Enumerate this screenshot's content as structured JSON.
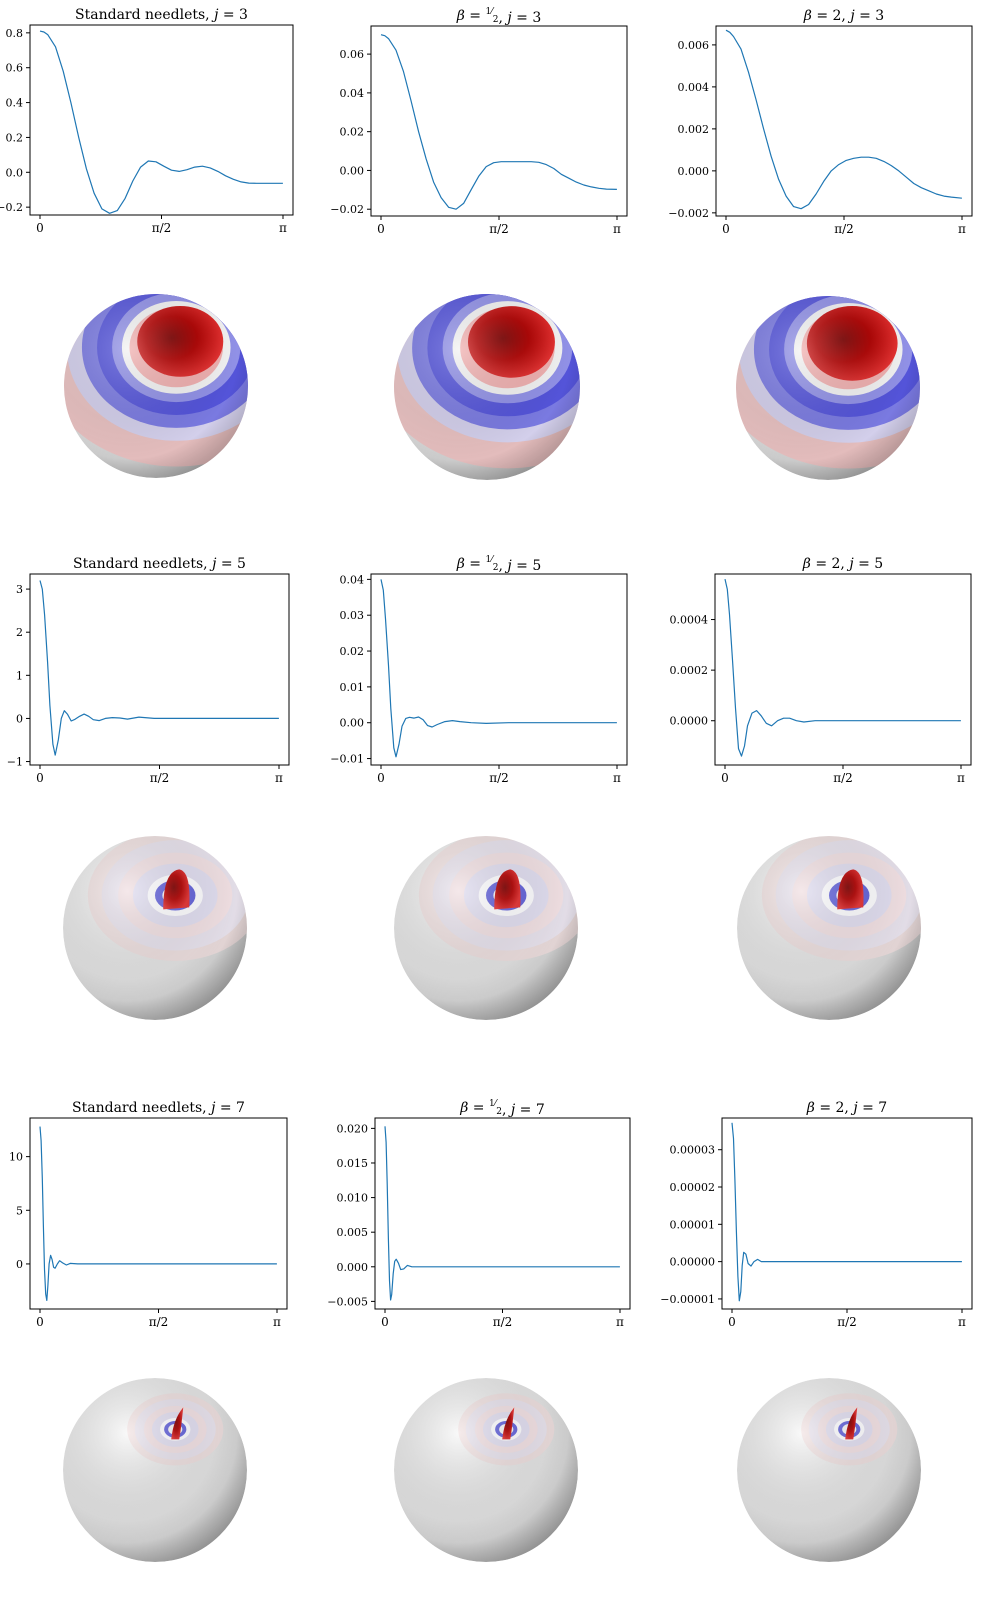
{
  "colors": {
    "line": "#1f77b4",
    "axis": "#000000",
    "red": "#c00000",
    "blue": "#3a3ad0"
  },
  "chart_data": [
    {
      "type": "line",
      "row": 0,
      "col": 0,
      "title": "Standard needlets, j = 3",
      "title_parts": [
        {
          "t": "Standard needlets, "
        },
        {
          "t": "j",
          "i": true
        },
        {
          "t": " = 3"
        }
      ],
      "xlim": [
        0,
        3.14159
      ],
      "ylim": [
        -0.245,
        0.845
      ],
      "xticks": [
        {
          "v": 0,
          "l": "0"
        },
        {
          "v": 1.5708,
          "l": "π/2"
        },
        {
          "v": 3.14159,
          "l": "π"
        }
      ],
      "yticks": [
        {
          "v": 0.8,
          "l": "0.8"
        },
        {
          "v": 0.6,
          "l": "0.6"
        },
        {
          "v": 0.4,
          "l": "0.4"
        },
        {
          "v": 0.2,
          "l": "0.2"
        },
        {
          "v": 0.0,
          "l": "0.0"
        },
        {
          "v": -0.2,
          "l": "−0.2"
        }
      ],
      "x": [
        0,
        0.05,
        0.1,
        0.2,
        0.3,
        0.4,
        0.5,
        0.6,
        0.7,
        0.8,
        0.9,
        1.0,
        1.1,
        1.2,
        1.3,
        1.4,
        1.5,
        1.6,
        1.7,
        1.8,
        1.9,
        2.0,
        2.1,
        2.2,
        2.3,
        2.4,
        2.5,
        2.6,
        2.7,
        2.8,
        2.9,
        3.0,
        3.14
      ],
      "y": [
        0.81,
        0.805,
        0.79,
        0.72,
        0.58,
        0.4,
        0.2,
        0.02,
        -0.12,
        -0.21,
        -0.235,
        -0.22,
        -0.15,
        -0.05,
        0.03,
        0.065,
        0.06,
        0.035,
        0.012,
        0.005,
        0.015,
        0.03,
        0.035,
        0.025,
        0.005,
        -0.02,
        -0.04,
        -0.055,
        -0.062,
        -0.063,
        -0.063,
        -0.063,
        -0.063
      ]
    },
    {
      "type": "line",
      "row": 0,
      "col": 1,
      "title": "β = 1/2, j = 3",
      "title_parts": [
        {
          "t": "β",
          "i": true
        },
        {
          "t": " = "
        },
        {
          "frac": [
            "1",
            "2"
          ]
        },
        {
          "t": ", "
        },
        {
          "t": "j",
          "i": true
        },
        {
          "t": " = 3"
        }
      ],
      "xlim": [
        0,
        3.14159
      ],
      "ylim": [
        -0.0235,
        0.0745
      ],
      "xticks": [
        {
          "v": 0,
          "l": "0"
        },
        {
          "v": 1.5708,
          "l": "π/2"
        },
        {
          "v": 3.14159,
          "l": "π"
        }
      ],
      "yticks": [
        {
          "v": 0.06,
          "l": "0.06"
        },
        {
          "v": 0.04,
          "l": "0.04"
        },
        {
          "v": 0.02,
          "l": "0.02"
        },
        {
          "v": 0.0,
          "l": "0.00"
        },
        {
          "v": -0.02,
          "l": "−0.02"
        }
      ],
      "x": [
        0,
        0.05,
        0.1,
        0.2,
        0.3,
        0.4,
        0.5,
        0.6,
        0.7,
        0.8,
        0.9,
        1.0,
        1.1,
        1.2,
        1.3,
        1.4,
        1.5,
        1.6,
        1.7,
        1.8,
        1.9,
        2.0,
        2.1,
        2.2,
        2.3,
        2.4,
        2.5,
        2.6,
        2.7,
        2.8,
        2.9,
        3.0,
        3.14
      ],
      "y": [
        0.07,
        0.0695,
        0.068,
        0.062,
        0.051,
        0.036,
        0.02,
        0.006,
        -0.006,
        -0.014,
        -0.019,
        -0.02,
        -0.017,
        -0.01,
        -0.003,
        0.002,
        0.004,
        0.0045,
        0.0045,
        0.0045,
        0.0045,
        0.0045,
        0.0042,
        0.003,
        0.001,
        -0.002,
        -0.004,
        -0.006,
        -0.0075,
        -0.0085,
        -0.0092,
        -0.0096,
        -0.0098
      ]
    },
    {
      "type": "line",
      "row": 0,
      "col": 2,
      "title": "β = 2, j = 3",
      "title_parts": [
        {
          "t": "β",
          "i": true
        },
        {
          "t": " = 2, "
        },
        {
          "t": "j",
          "i": true
        },
        {
          "t": " = 3"
        }
      ],
      "xlim": [
        0,
        3.14159
      ],
      "ylim": [
        -0.00215,
        0.0069
      ],
      "xticks": [
        {
          "v": 0,
          "l": "0"
        },
        {
          "v": 1.5708,
          "l": "π/2"
        },
        {
          "v": 3.14159,
          "l": "π"
        }
      ],
      "yticks": [
        {
          "v": 0.006,
          "l": "0.006"
        },
        {
          "v": 0.004,
          "l": "0.004"
        },
        {
          "v": 0.002,
          "l": "0.002"
        },
        {
          "v": 0.0,
          "l": "0.000"
        },
        {
          "v": -0.002,
          "l": "−0.002"
        }
      ],
      "x": [
        0,
        0.05,
        0.1,
        0.2,
        0.3,
        0.4,
        0.5,
        0.6,
        0.7,
        0.8,
        0.9,
        1.0,
        1.1,
        1.2,
        1.3,
        1.4,
        1.5,
        1.6,
        1.7,
        1.8,
        1.9,
        2.0,
        2.1,
        2.2,
        2.3,
        2.4,
        2.5,
        2.6,
        2.7,
        2.8,
        2.9,
        3.0,
        3.14
      ],
      "y": [
        0.0067,
        0.0066,
        0.0064,
        0.0058,
        0.0047,
        0.0034,
        0.002,
        0.0007,
        -0.0004,
        -0.0012,
        -0.0017,
        -0.0018,
        -0.0016,
        -0.0011,
        -0.0005,
        0.0,
        0.0003,
        0.0005,
        0.0006,
        0.00065,
        0.00065,
        0.0006,
        0.00045,
        0.00025,
        0.0,
        -0.0003,
        -0.0006,
        -0.0008,
        -0.00095,
        -0.0011,
        -0.0012,
        -0.00125,
        -0.0013
      ]
    },
    {
      "type": "line",
      "row": 1,
      "col": 0,
      "title": "Standard needlets, j = 5",
      "title_parts": [
        {
          "t": "Standard needlets, "
        },
        {
          "t": "j",
          "i": true
        },
        {
          "t": " = 5"
        }
      ],
      "xlim": [
        0,
        3.14159
      ],
      "ylim": [
        -1.08,
        3.35
      ],
      "xticks": [
        {
          "v": 0,
          "l": "0"
        },
        {
          "v": 1.5708,
          "l": "π/2"
        },
        {
          "v": 3.14159,
          "l": "π"
        }
      ],
      "yticks": [
        {
          "v": 3,
          "l": "3"
        },
        {
          "v": 2,
          "l": "2"
        },
        {
          "v": 1,
          "l": "1"
        },
        {
          "v": 0,
          "l": "0"
        },
        {
          "v": -1,
          "l": "−1"
        }
      ],
      "x": [
        0,
        0.03,
        0.06,
        0.1,
        0.13,
        0.17,
        0.2,
        0.24,
        0.28,
        0.32,
        0.36,
        0.41,
        0.46,
        0.52,
        0.58,
        0.64,
        0.7,
        0.78,
        0.86,
        0.95,
        1.05,
        1.15,
        1.3,
        1.5,
        1.7,
        2.0,
        2.4,
        2.8,
        3.14
      ],
      "y": [
        3.2,
        3.0,
        2.4,
        1.3,
        0.3,
        -0.6,
        -0.85,
        -0.5,
        0.0,
        0.18,
        0.1,
        -0.06,
        -0.02,
        0.05,
        0.1,
        0.05,
        -0.03,
        -0.05,
        0.0,
        0.02,
        0.01,
        -0.015,
        0.03,
        0.0,
        0.0,
        0.0,
        0.0,
        0.0,
        0.0
      ]
    },
    {
      "type": "line",
      "row": 1,
      "col": 1,
      "title": "β = 1/2, j = 5",
      "title_parts": [
        {
          "t": "β",
          "i": true
        },
        {
          "t": " = "
        },
        {
          "frac": [
            "1",
            "2"
          ]
        },
        {
          "t": ", "
        },
        {
          "t": "j",
          "i": true
        },
        {
          "t": " = 5"
        }
      ],
      "xlim": [
        0,
        3.14159
      ],
      "ylim": [
        -0.0118,
        0.0415
      ],
      "xticks": [
        {
          "v": 0,
          "l": "0"
        },
        {
          "v": 1.5708,
          "l": "π/2"
        },
        {
          "v": 3.14159,
          "l": "π"
        }
      ],
      "yticks": [
        {
          "v": 0.04,
          "l": "0.04"
        },
        {
          "v": 0.03,
          "l": "0.03"
        },
        {
          "v": 0.02,
          "l": "0.02"
        },
        {
          "v": 0.01,
          "l": "0.01"
        },
        {
          "v": 0.0,
          "l": "0.00"
        },
        {
          "v": -0.01,
          "l": "−0.01"
        }
      ],
      "x": [
        0,
        0.03,
        0.06,
        0.1,
        0.13,
        0.17,
        0.2,
        0.24,
        0.28,
        0.33,
        0.38,
        0.44,
        0.5,
        0.56,
        0.62,
        0.68,
        0.75,
        0.85,
        0.95,
        1.05,
        1.2,
        1.4,
        1.7,
        2.0,
        2.4,
        2.8,
        3.14
      ],
      "y": [
        0.04,
        0.037,
        0.029,
        0.016,
        0.004,
        -0.007,
        -0.0095,
        -0.006,
        -0.001,
        0.0012,
        0.0015,
        0.0013,
        0.0016,
        0.0008,
        -0.0008,
        -0.0012,
        -0.0005,
        0.0003,
        0.0006,
        0.0003,
        0.0,
        -0.0002,
        0.0,
        0.0,
        0.0,
        0.0,
        0.0
      ]
    },
    {
      "type": "line",
      "row": 1,
      "col": 2,
      "title": "β = 2, j = 5",
      "title_parts": [
        {
          "t": "β",
          "i": true
        },
        {
          "t": " = 2, "
        },
        {
          "t": "j",
          "i": true
        },
        {
          "t": " = 5"
        }
      ],
      "xlim": [
        0,
        3.14159
      ],
      "ylim": [
        -0.000175,
        0.00058
      ],
      "xticks": [
        {
          "v": 0,
          "l": "0"
        },
        {
          "v": 1.5708,
          "l": "π/2"
        },
        {
          "v": 3.14159,
          "l": "π"
        }
      ],
      "yticks": [
        {
          "v": 0.0004,
          "l": "0.0004"
        },
        {
          "v": 0.0002,
          "l": "0.0002"
        },
        {
          "v": 0.0,
          "l": "0.0000"
        }
      ],
      "x": [
        0,
        0.03,
        0.06,
        0.1,
        0.14,
        0.18,
        0.22,
        0.26,
        0.3,
        0.36,
        0.42,
        0.48,
        0.55,
        0.62,
        0.7,
        0.78,
        0.86,
        0.95,
        1.05,
        1.2,
        1.4,
        1.7,
        2.0,
        2.4,
        2.8,
        3.14
      ],
      "y": [
        0.00056,
        0.00052,
        0.00042,
        0.00024,
        5e-05,
        -0.00011,
        -0.00014,
        -0.0001,
        -2e-05,
        3e-05,
        4e-05,
        2e-05,
        -1e-05,
        -2e-05,
        0.0,
        1e-05,
        1e-05,
        0.0,
        -5e-06,
        0.0,
        0.0,
        0.0,
        0.0,
        0.0,
        0.0,
        0.0
      ]
    },
    {
      "type": "line",
      "row": 2,
      "col": 0,
      "title": "Standard needlets, j = 7",
      "title_parts": [
        {
          "t": "Standard needlets, "
        },
        {
          "t": "j",
          "i": true
        },
        {
          "t": " = 7"
        }
      ],
      "xlim": [
        0,
        3.14159
      ],
      "ylim": [
        -4.2,
        13.6
      ],
      "xticks": [
        {
          "v": 0,
          "l": "0"
        },
        {
          "v": 1.5708,
          "l": "π/2"
        },
        {
          "v": 3.14159,
          "l": "π"
        }
      ],
      "yticks": [
        {
          "v": 10,
          "l": "10"
        },
        {
          "v": 5,
          "l": "5"
        },
        {
          "v": 0,
          "l": "0"
        }
      ],
      "x": [
        0,
        0.015,
        0.03,
        0.045,
        0.06,
        0.075,
        0.09,
        0.105,
        0.12,
        0.14,
        0.16,
        0.18,
        0.2,
        0.23,
        0.26,
        0.3,
        0.35,
        0.4,
        0.5,
        0.7,
        1.0,
        1.5,
        2.0,
        2.5,
        3.14
      ],
      "y": [
        12.8,
        11.5,
        8.0,
        3.5,
        -0.5,
        -2.8,
        -3.4,
        -2.0,
        0.0,
        0.8,
        0.4,
        -0.3,
        -0.4,
        0.0,
        0.3,
        0.1,
        -0.1,
        0.05,
        0.0,
        0.0,
        0.0,
        0.0,
        0.0,
        0.0,
        0.0
      ]
    },
    {
      "type": "line",
      "row": 2,
      "col": 1,
      "title": "β = 1/2, j = 7",
      "title_parts": [
        {
          "t": "β",
          "i": true
        },
        {
          "t": " = "
        },
        {
          "frac": [
            "1",
            "2"
          ]
        },
        {
          "t": ", "
        },
        {
          "t": "j",
          "i": true
        },
        {
          "t": " = 7"
        }
      ],
      "xlim": [
        0,
        3.14159
      ],
      "ylim": [
        -0.0061,
        0.0215
      ],
      "xticks": [
        {
          "v": 0,
          "l": "0"
        },
        {
          "v": 1.5708,
          "l": "π/2"
        },
        {
          "v": 3.14159,
          "l": "π"
        }
      ],
      "yticks": [
        {
          "v": 0.02,
          "l": "0.020"
        },
        {
          "v": 0.015,
          "l": "0.015"
        },
        {
          "v": 0.01,
          "l": "0.010"
        },
        {
          "v": 0.005,
          "l": "0.005"
        },
        {
          "v": 0.0,
          "l": "0.000"
        },
        {
          "v": -0.005,
          "l": "−0.005"
        }
      ],
      "x": [
        0,
        0.015,
        0.03,
        0.045,
        0.06,
        0.075,
        0.09,
        0.11,
        0.13,
        0.15,
        0.18,
        0.21,
        0.25,
        0.3,
        0.36,
        0.45,
        0.6,
        0.9,
        1.3,
        1.8,
        2.4,
        3.14
      ],
      "y": [
        0.0203,
        0.018,
        0.012,
        0.004,
        -0.002,
        -0.0048,
        -0.004,
        -0.001,
        0.0008,
        0.0011,
        0.0005,
        -0.0004,
        -0.0003,
        0.0002,
        0.0,
        0.0,
        0.0,
        0.0,
        0.0,
        0.0,
        0.0,
        0.0
      ]
    },
    {
      "type": "line",
      "row": 2,
      "col": 2,
      "title": "β = 2, j = 7",
      "title_parts": [
        {
          "t": "β",
          "i": true
        },
        {
          "t": " = 2, "
        },
        {
          "t": "j",
          "i": true
        },
        {
          "t": " = 7"
        }
      ],
      "xlim": [
        0,
        3.14159
      ],
      "ylim": [
        -1.27e-05,
        3.85e-05
      ],
      "xticks": [
        {
          "v": 0,
          "l": "0"
        },
        {
          "v": 1.5708,
          "l": "π/2"
        },
        {
          "v": 3.14159,
          "l": "π"
        }
      ],
      "yticks": [
        {
          "v": 3e-05,
          "l": "0.00003"
        },
        {
          "v": 2e-05,
          "l": "0.00002"
        },
        {
          "v": 1e-05,
          "l": "0.00001"
        },
        {
          "v": 0.0,
          "l": "0.00000"
        },
        {
          "v": -1e-05,
          "l": "−0.00001"
        }
      ],
      "x": [
        0,
        0.02,
        0.04,
        0.06,
        0.08,
        0.1,
        0.12,
        0.14,
        0.16,
        0.19,
        0.22,
        0.26,
        0.3,
        0.35,
        0.4,
        0.5,
        0.7,
        1.0,
        1.5,
        2.0,
        2.5,
        3.14
      ],
      "y": [
        3.72e-05,
        3.3e-05,
        2.2e-05,
        8e-06,
        -4e-06,
        -1.05e-05,
        -8e-06,
        -1e-06,
        2.5e-06,
        2e-06,
        -5e-07,
        -1.2e-06,
        0.0,
        6e-07,
        0.0,
        0.0,
        0.0,
        0.0,
        0.0,
        0.0,
        0.0,
        0.0
      ]
    }
  ],
  "spheres": [
    {
      "row": 0,
      "col": 0,
      "level": "j3",
      "blob": 0.55
    },
    {
      "row": 0,
      "col": 1,
      "level": "j3",
      "blob": 0.55
    },
    {
      "row": 0,
      "col": 2,
      "level": "j3",
      "blob": 0.58
    },
    {
      "row": 1,
      "col": 0,
      "level": "j5",
      "blob": 0.14
    },
    {
      "row": 1,
      "col": 1,
      "level": "j5",
      "blob": 0.14
    },
    {
      "row": 1,
      "col": 2,
      "level": "j5",
      "blob": 0.14
    },
    {
      "row": 2,
      "col": 0,
      "level": "j7",
      "blob": 0.07
    },
    {
      "row": 2,
      "col": 1,
      "level": "j7",
      "blob": 0.07
    },
    {
      "row": 2,
      "col": 2,
      "level": "j7",
      "blob": 0.07
    }
  ]
}
